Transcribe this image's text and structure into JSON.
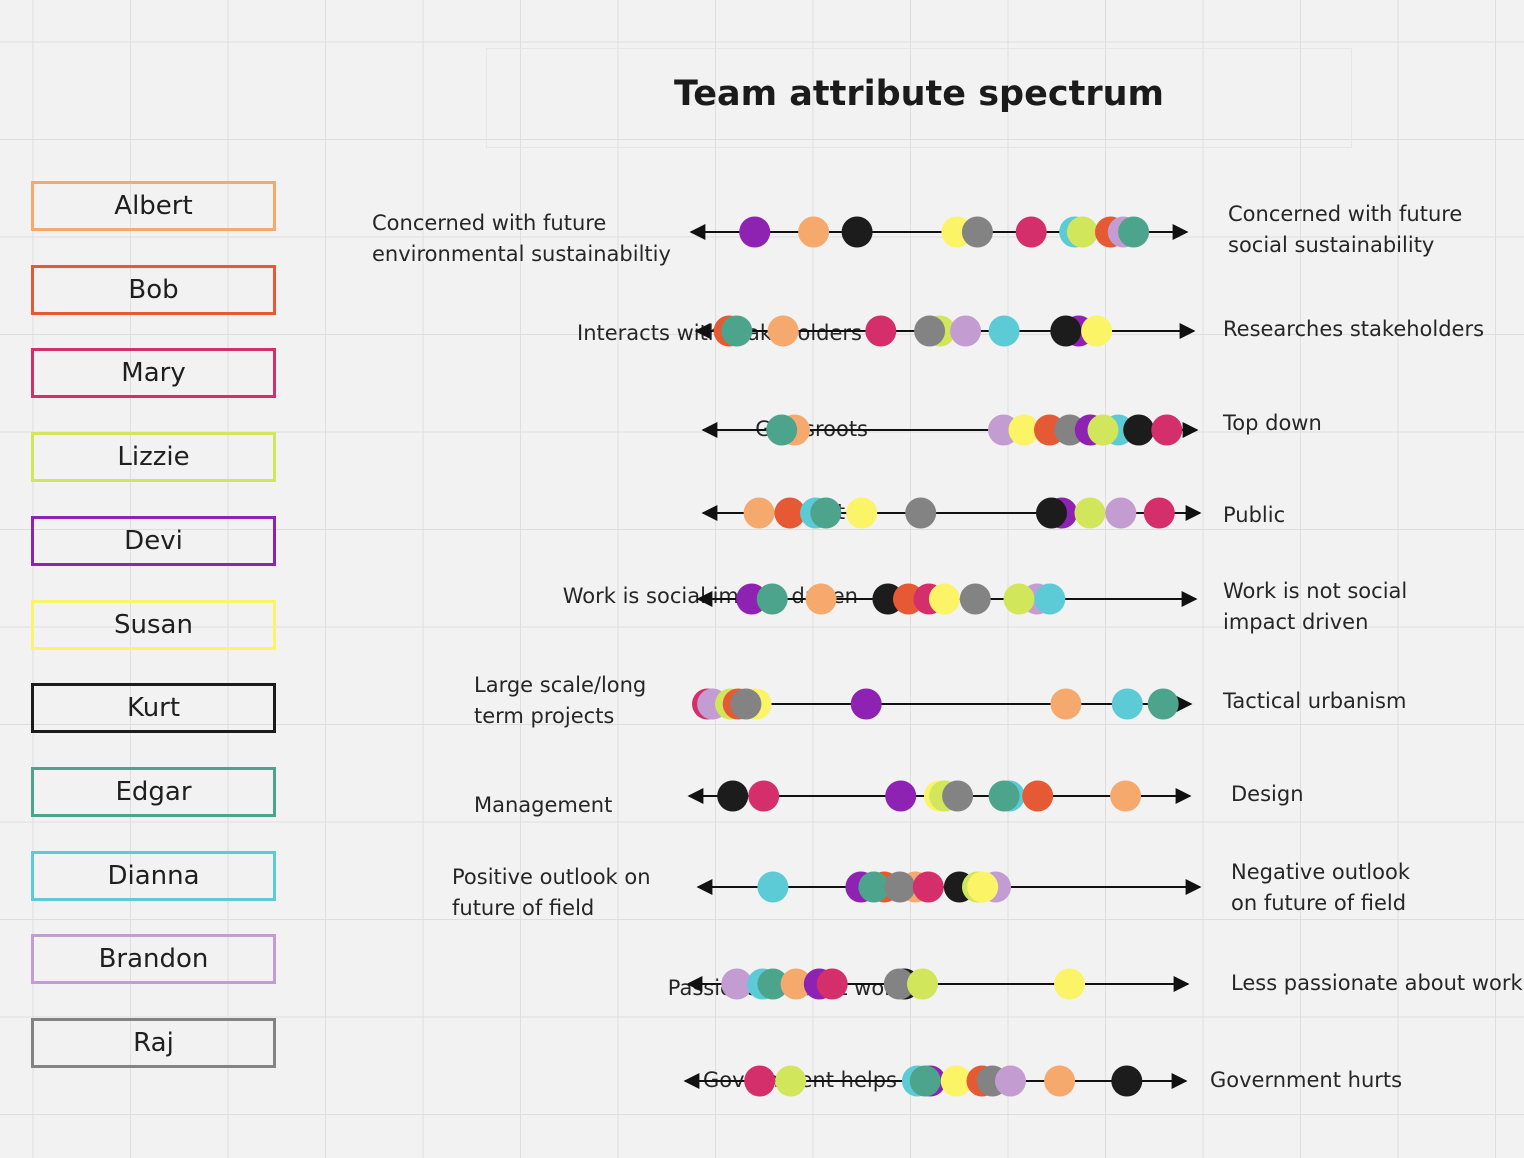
{
  "title": "Team attribute spectrum",
  "people": [
    {
      "name": "Albert",
      "color": "#f6a96c"
    },
    {
      "name": "Bob",
      "color": "#e55a34"
    },
    {
      "name": "Mary",
      "color": "#d42e6b"
    },
    {
      "name": "Lizzie",
      "color": "#d1e65a"
    },
    {
      "name": "Devi",
      "color": "#8e22b2"
    },
    {
      "name": "Susan",
      "color": "#fcf467"
    },
    {
      "name": "Kurt",
      "color": "#1c1c1c"
    },
    {
      "name": "Edgar",
      "color": "#4ca48c"
    },
    {
      "name": "Dianna",
      "color": "#5ccbd6"
    },
    {
      "name": "Brandon",
      "color": "#c39dd1"
    },
    {
      "name": "Raj",
      "color": "#838383"
    }
  ],
  "spectrums": [
    {
      "left_label": "Concerned with future\nenvironmental sustainabiltiy",
      "right_label": "Concerned with future\nsocial sustainability",
      "positions": {
        "Devi": 0.14,
        "Albert": 0.255,
        "Kurt": 0.34,
        "Susan": 0.535,
        "Raj": 0.575,
        "Mary": 0.68,
        "Dianna": 0.765,
        "Lizzie": 0.78,
        "Bob": 0.835,
        "Brandon": 0.86,
        "Edgar": 0.88
      }
    },
    {
      "left_label": "Interacts with stakeholders",
      "right_label": "Researches stakeholders",
      "positions": {
        "Bob": 0.08,
        "Edgar": 0.095,
        "Albert": 0.185,
        "Mary": 0.375,
        "Lizzie": 0.49,
        "Raj": 0.47,
        "Brandon": 0.54,
        "Dianna": 0.615,
        "Devi": 0.76,
        "Kurt": 0.735,
        "Susan": 0.795
      }
    },
    {
      "left_label": "Grassroots",
      "right_label": "Top down",
      "positions": {
        "Albert": 0.195,
        "Edgar": 0.17,
        "Brandon": 0.605,
        "Susan": 0.645,
        "Bob": 0.695,
        "Raj": 0.735,
        "Devi": 0.775,
        "Dianna": 0.83,
        "Lizzie": 0.8,
        "Kurt": 0.87,
        "Mary": 0.925
      }
    },
    {
      "left_label": "Private",
      "right_label": "Public",
      "positions": {
        "Albert": 0.125,
        "Bob": 0.185,
        "Dianna": 0.235,
        "Edgar": 0.255,
        "Susan": 0.325,
        "Raj": 0.44,
        "Devi": 0.715,
        "Kurt": 0.695,
        "Lizzie": 0.77,
        "Brandon": 0.83,
        "Mary": 0.905
      }
    },
    {
      "left_label": "Work is social impact driven",
      "right_label": "Work is not social\nimpact driven",
      "positions": {
        "Devi": 0.12,
        "Edgar": 0.16,
        "Albert": 0.255,
        "Kurt": 0.385,
        "Bob": 0.425,
        "Mary": 0.465,
        "Susan": 0.495,
        "Raj": 0.555,
        "Brandon": 0.675,
        "Lizzie": 0.64,
        "Dianna": 0.7
      }
    },
    {
      "left_label": "Large scale/long\nterm projects",
      "right_label": "Tactical urbanism",
      "positions": {
        "Mary": 0.04,
        "Brandon": 0.05,
        "Lizzie": 0.085,
        "Bob": 0.1,
        "Susan": 0.135,
        "Raj": 0.115,
        "Devi": 0.35,
        "Albert": 0.74,
        "Dianna": 0.86,
        "Edgar": 0.93
      }
    },
    {
      "left_label": "Management",
      "right_label": "Design",
      "positions": {
        "Kurt": 0.1,
        "Mary": 0.16,
        "Devi": 0.425,
        "Susan": 0.5,
        "Lizzie": 0.51,
        "Raj": 0.535,
        "Dianna": 0.635,
        "Edgar": 0.625,
        "Bob": 0.69,
        "Albert": 0.86
      }
    },
    {
      "left_label": "Positive outlook on\nfuture of field",
      "right_label": "Negative outlook\non future of field",
      "positions": {
        "Dianna": 0.16,
        "Devi": 0.33,
        "Bob": 0.375,
        "Edgar": 0.355,
        "Albert": 0.435,
        "Raj": 0.405,
        "Mary": 0.46,
        "Kurt": 0.52,
        "Brandon": 0.59,
        "Lizzie": 0.555,
        "Susan": 0.565
      }
    },
    {
      "left_label": "Passionate about work",
      "right_label": "Less passionate about work",
      "positions": {
        "Brandon": 0.11,
        "Dianna": 0.16,
        "Edgar": 0.18,
        "Albert": 0.225,
        "Devi": 0.27,
        "Mary": 0.295,
        "Kurt": 0.435,
        "Raj": 0.425,
        "Lizzie": 0.47,
        "Susan": 0.755
      }
    },
    {
      "left_label": "Government helps",
      "right_label": "Government hurts",
      "positions": {
        "Mary": 0.16,
        "Lizzie": 0.22,
        "Dianna": 0.465,
        "Devi": 0.49,
        "Edgar": 0.48,
        "Susan": 0.54,
        "Bob": 0.59,
        "Raj": 0.61,
        "Brandon": 0.645,
        "Albert": 0.74,
        "Kurt": 0.87
      }
    }
  ]
}
